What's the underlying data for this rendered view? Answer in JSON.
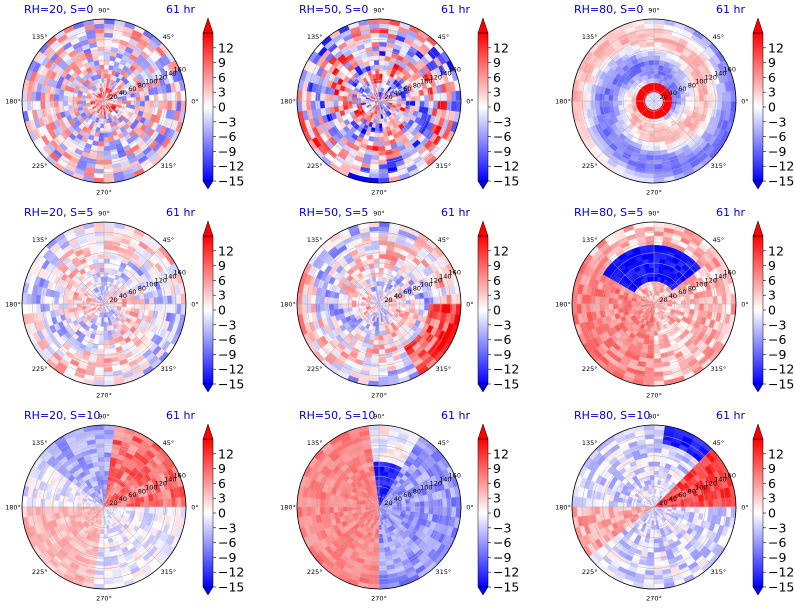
{
  "chart_data": [
    {
      "type": "polar-heatmap",
      "title_left": "RH=20, S=0",
      "title_right": "61 hr",
      "pattern": "noise"
    },
    {
      "type": "polar-heatmap",
      "title_left": "RH=50, S=0",
      "title_right": "61 hr",
      "pattern": "ring-noise"
    },
    {
      "type": "polar-heatmap",
      "title_left": "RH=80, S=0",
      "title_right": "61 hr",
      "pattern": "eye-spiral"
    },
    {
      "type": "polar-heatmap",
      "title_left": "RH=20, S=5",
      "title_right": "61 hr",
      "pattern": "sparse"
    },
    {
      "type": "polar-heatmap",
      "title_left": "RH=50, S=5",
      "title_right": "61 hr",
      "pattern": "dipole-se"
    },
    {
      "type": "polar-heatmap",
      "title_left": "RH=80, S=5",
      "title_right": "61 hr",
      "pattern": "blue-north"
    },
    {
      "type": "polar-heatmap",
      "title_left": "RH=20, S=10",
      "title_right": "61 hr",
      "pattern": "east-red"
    },
    {
      "type": "polar-heatmap",
      "title_left": "RH=50, S=10",
      "title_right": "61 hr",
      "pattern": "west-red"
    },
    {
      "type": "polar-heatmap",
      "title_left": "RH=80, S=10",
      "title_right": "61 hr",
      "pattern": "east-red-ne-blue"
    }
  ],
  "angle_labels": [
    "0°",
    "45°",
    "90°",
    "135°",
    "180°",
    "225°",
    "270°",
    "315°"
  ],
  "radial_labels": [
    "20",
    "40",
    "60",
    "80",
    "100",
    "120",
    "140",
    "160"
  ],
  "colorbar": {
    "min": -15,
    "max": 15,
    "ticks": [
      "12",
      "9",
      "6",
      "3",
      "0",
      "−3",
      "−6",
      "−9",
      "−12",
      "−15"
    ],
    "colormap": "bwr"
  },
  "colors": {
    "title_right": "#0000cc",
    "title_left": "#0000cc",
    "positive": "#ff0000",
    "negative": "#0000ff"
  }
}
